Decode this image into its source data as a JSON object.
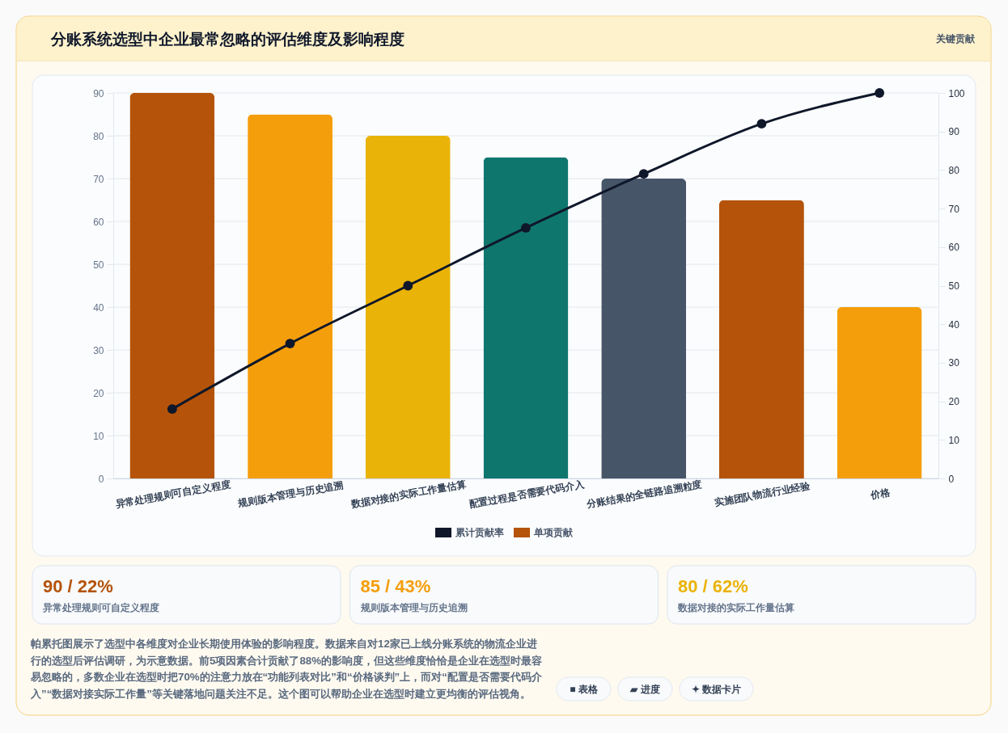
{
  "chart_data": {
    "type": "bar",
    "title": "分账系统选型中企业最常忽略的评估维度及影响程度",
    "categories": [
      "异常处理规则可自定义程度",
      "规则版本管理与历史追溯",
      "数据对接的实际工作量估算",
      "配置过程是否需要代码介入",
      "分账结果的全链路追溯粒度",
      "实施团队物流行业经验",
      "价格"
    ],
    "series": [
      {
        "name": "累计贡献率",
        "type": "line",
        "axis": "y2",
        "color": "#0f172a",
        "values": [
          18,
          35,
          50,
          65,
          79,
          92,
          100
        ]
      },
      {
        "name": "单项贡献",
        "color": "#b45309",
        "colors": [
          "#b45309",
          "#f59e0b",
          "#eab308",
          "#0f766e",
          "#475569",
          "#b45309",
          "#f59e0b"
        ],
        "values": [
          90,
          85,
          80,
          75,
          70,
          65,
          40
        ]
      }
    ],
    "ylim": [
      0,
      90
    ],
    "yticks": [
      0,
      10,
      20,
      30,
      40,
      50,
      60,
      70,
      80,
      90
    ],
    "y2lim": [
      0,
      100
    ],
    "y2ticks": [
      0,
      10,
      20,
      30,
      40,
      50,
      60,
      70,
      80,
      90,
      100
    ],
    "grid": "y",
    "legend": "bottom",
    "marker": "circle",
    "line_style": "solid",
    "annotations": [
      "关键贡献",
      "90 / 22%",
      "异常处理规则可自定义程度",
      "85 / 43%",
      "规则版本管理与历史追溯",
      "80 / 62%",
      "数据对接的实际工作量估算",
      "帕累托图展示了选型中各维度对企业长期使用体验的影响程度。数据来自对12家已上线分账系统的物流企业进行的选型后评估调研，为示意数据。前5项因素合计贡献了88%的影响度，但这些维度恰恰是企业在选型时最容易忽略的，多数企业在选型时把70%的注意力放在“功能列表对比”和“价格谈判”上，而对“配置是否需要代码介入”“数据对接实际工作量”等关键落地问题关注不足。这个图可以帮助企业在选型时建立更均衡的评估视角。",
      "■ 表格",
      "▰ 进度",
      "✦ 数据卡片"
    ]
  }
}
